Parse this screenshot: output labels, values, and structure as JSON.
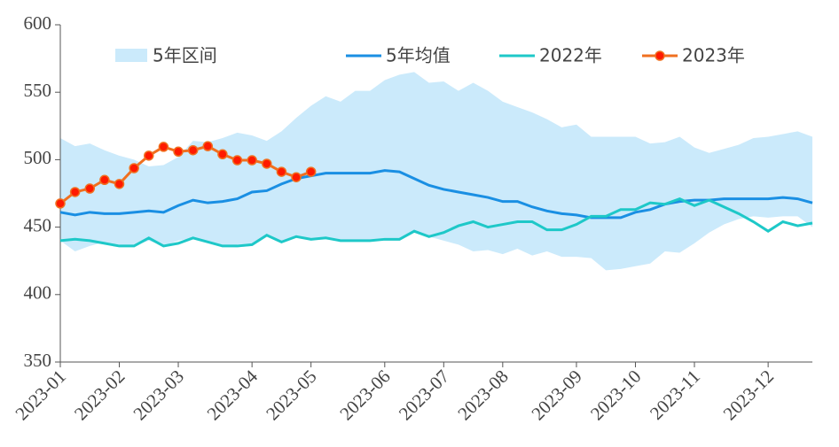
{
  "chart_data": {
    "type": "line",
    "categories": [
      "2023-01",
      null,
      null,
      null,
      "2023-02",
      null,
      null,
      null,
      "2023-03",
      null,
      null,
      null,
      null,
      "2023-04",
      null,
      null,
      null,
      "2023-05",
      null,
      null,
      null,
      null,
      "2023-06",
      null,
      null,
      null,
      "2023-07",
      null,
      null,
      null,
      "2023-08",
      null,
      null,
      null,
      null,
      "2023-09",
      null,
      null,
      null,
      "2023-10",
      null,
      null,
      null,
      "2023-11",
      null,
      null,
      null,
      null,
      "2023-12",
      null,
      null,
      null
    ],
    "ylim": [
      350,
      600
    ],
    "yticks": [
      350,
      400,
      450,
      500,
      550,
      600
    ],
    "band": {
      "name": "5年区间",
      "color": "#cbeafb",
      "high": [
        516,
        510,
        512,
        507,
        503,
        500,
        495,
        496,
        502,
        514,
        513,
        516,
        520,
        518,
        514,
        521,
        531,
        540,
        547,
        543,
        551,
        551,
        559,
        563,
        565,
        557,
        558,
        551,
        557,
        551,
        543,
        539,
        535,
        530,
        524,
        526,
        517,
        517,
        517,
        517,
        512,
        513,
        517,
        509,
        505,
        508,
        511,
        516,
        517,
        519,
        521,
        517
      ],
      "low": [
        440,
        432,
        436,
        439,
        437,
        436,
        440,
        436,
        440,
        442,
        440,
        436,
        435,
        436,
        443,
        439,
        443,
        441,
        442,
        440,
        440,
        440,
        441,
        441,
        446,
        443,
        440,
        437,
        432,
        433,
        430,
        434,
        429,
        432,
        428,
        428,
        427,
        418,
        419,
        421,
        423,
        432,
        431,
        438,
        446,
        452,
        456,
        458,
        457,
        458,
        458,
        450
      ]
    },
    "series": [
      {
        "name": "5年均值",
        "color": "#1a8fe3",
        "values": [
          461,
          459,
          461,
          460,
          460,
          461,
          462,
          461,
          466,
          470,
          468,
          469,
          471,
          476,
          477,
          482,
          486,
          488,
          490,
          490,
          490,
          490,
          492,
          491,
          486,
          481,
          478,
          476,
          474,
          472,
          469,
          469,
          465,
          462,
          460,
          459,
          457,
          457,
          457,
          461,
          463,
          467,
          469,
          470,
          470,
          471,
          471,
          471,
          471,
          472,
          471,
          468
        ]
      },
      {
        "name": "2022年",
        "color": "#1ec8c8",
        "values": [
          440,
          441,
          440,
          438,
          436,
          436,
          442,
          436,
          438,
          442,
          439,
          436,
          436,
          437,
          444,
          439,
          443,
          441,
          442,
          440,
          440,
          440,
          441,
          441,
          447,
          443,
          446,
          451,
          454,
          450,
          452,
          454,
          454,
          448,
          448,
          452,
          458,
          458,
          463,
          463,
          468,
          467,
          471,
          466,
          470,
          465,
          460,
          454,
          447,
          454,
          451,
          453
        ]
      },
      {
        "name": "2023年",
        "color": "#f07020",
        "marker_color": "#ff1a00",
        "values": [
          467.5,
          476,
          478.6,
          485,
          482,
          493.7,
          503,
          509.5,
          506,
          507,
          510,
          504,
          499.6,
          499.6,
          497,
          491,
          487,
          491,
          null,
          null,
          null,
          null,
          null,
          null,
          null,
          null,
          null,
          null,
          null,
          null,
          null,
          null,
          null,
          null,
          null,
          null,
          null,
          null,
          null,
          null,
          null,
          null,
          null,
          null,
          null,
          null,
          null,
          null,
          null,
          null,
          null,
          null
        ]
      }
    ]
  }
}
